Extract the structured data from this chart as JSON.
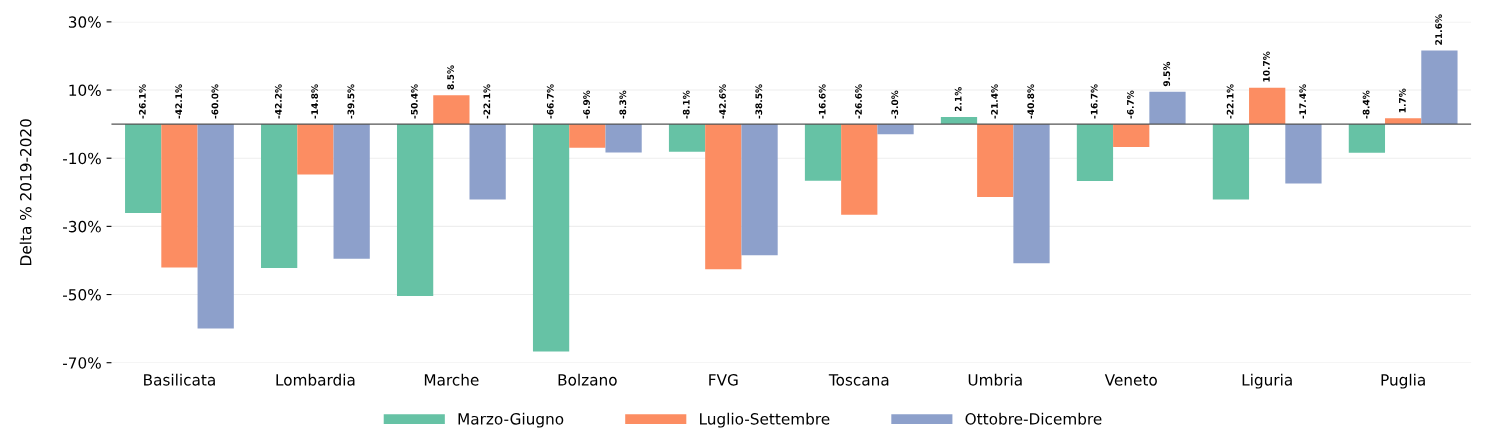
{
  "chart_data": {
    "type": "bar",
    "ylabel": "Delta % 2019-2020",
    "categories": [
      "Basilicata",
      "Lombardia",
      "Marche",
      "Bolzano",
      "FVG",
      "Toscana",
      "Umbria",
      "Veneto",
      "Liguria",
      "Puglia"
    ],
    "series": [
      {
        "name": "Marzo-Giugno",
        "color": "#66c2a5",
        "values": [
          -26.1,
          -42.2,
          -50.4,
          -66.7,
          -8.1,
          -16.6,
          2.1,
          -16.7,
          -22.1,
          -8.4
        ],
        "value_labels": [
          "-26.1%",
          "-42.2%",
          "-50.4%",
          "-66.7%",
          "-8.1%",
          "-16.6%",
          "2.1%",
          "-16.7%",
          "-22.1%",
          "-8.4%"
        ]
      },
      {
        "name": "Luglio-Settembre",
        "color": "#fc8d62",
        "values": [
          -42.1,
          -14.8,
          8.5,
          -6.9,
          -42.6,
          -26.6,
          -21.4,
          -6.7,
          10.7,
          1.7
        ],
        "value_labels": [
          "-42.1%",
          "-14.8%",
          "8.5%",
          "-6.9%",
          "-42.6%",
          "-26.6%",
          "-21.4%",
          "-6.7%",
          "10.7%",
          "1.7%"
        ]
      },
      {
        "name": "Ottobre-Dicembre",
        "color": "#8da0cb",
        "values": [
          -60.0,
          -39.5,
          -22.1,
          -8.3,
          -38.5,
          -3.0,
          -40.8,
          9.5,
          -17.4,
          21.6
        ],
        "value_labels": [
          "-60.0%",
          "-39.5%",
          "-22.1%",
          "-8.3%",
          "-38.5%",
          "-3.0%",
          "-40.8%",
          "9.5%",
          "-17.4%",
          "21.6%"
        ]
      }
    ],
    "ylim": [
      -70,
      30
    ],
    "yticks": [
      {
        "value": 30,
        "label": "30%"
      },
      {
        "value": 10,
        "label": "10%"
      },
      {
        "value": -10,
        "label": "-10%"
      },
      {
        "value": -30,
        "label": "-30%"
      },
      {
        "value": -50,
        "label": "-50%"
      },
      {
        "value": -70,
        "label": "-70%"
      }
    ],
    "ref_lines": [
      {
        "axis": "y",
        "value": 0,
        "color": "#555555"
      }
    ],
    "grid": "y",
    "legend": "bottom"
  }
}
